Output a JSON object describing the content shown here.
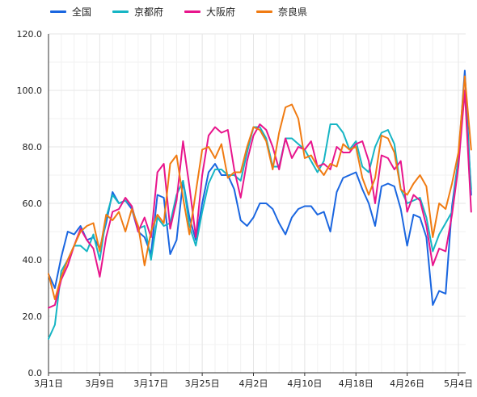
{
  "legend": [
    {
      "name": "全国",
      "color": "#1a66e0"
    },
    {
      "name": "京都府",
      "color": "#16b5c4"
    },
    {
      "name": "大阪府",
      "color": "#e8158c"
    },
    {
      "name": "奈良県",
      "color": "#f07b12"
    }
  ],
  "chart_data": {
    "type": "line",
    "title": "",
    "xlabel": "",
    "ylabel": "",
    "ylim": [
      0,
      120
    ],
    "yticks": [
      "0.0",
      "20.0",
      "40.0",
      "60.0",
      "80.0",
      "100.0",
      "120.0"
    ],
    "xticks": [
      {
        "index": 0,
        "label": "3月1日"
      },
      {
        "index": 8,
        "label": "3月9日"
      },
      {
        "index": 16,
        "label": "3月17日"
      },
      {
        "index": 24,
        "label": "3月25日"
      },
      {
        "index": 32,
        "label": "4月2日"
      },
      {
        "index": 40,
        "label": "4月10日"
      },
      {
        "index": 48,
        "label": "4月18日"
      },
      {
        "index": 56,
        "label": "4月26日"
      },
      {
        "index": 64,
        "label": "5月4日"
      }
    ],
    "grid": true,
    "legend_position": "top-left",
    "series": [
      {
        "name": "全国",
        "color": "#1a66e0",
        "values": [
          35,
          30,
          41,
          50,
          49,
          52,
          47,
          48,
          44,
          53,
          64,
          60,
          61,
          58,
          50,
          48,
          42,
          63,
          62,
          42,
          47,
          68,
          55,
          47,
          60,
          71,
          74,
          70,
          70,
          65,
          54,
          52,
          55,
          60,
          60,
          58,
          53,
          49,
          55,
          58,
          59,
          59,
          56,
          57,
          50,
          64,
          69,
          70,
          71,
          65,
          60,
          52,
          66,
          67,
          66,
          58,
          45,
          56,
          55,
          48,
          24,
          29,
          28,
          59,
          76,
          107,
          63
        ]
      },
      {
        "name": "京都府",
        "color": "#16b5c4",
        "values": [
          12,
          17,
          36,
          40,
          45,
          45,
          43,
          49,
          40,
          55,
          63,
          60,
          61,
          59,
          51,
          52,
          40,
          55,
          52,
          53,
          63,
          68,
          52,
          45,
          57,
          67,
          72,
          72,
          70,
          70,
          68,
          78,
          87,
          87,
          83,
          73,
          73,
          83,
          83,
          81,
          79,
          75,
          71,
          75,
          88,
          88,
          85,
          79,
          82,
          73,
          71,
          80,
          85,
          86,
          81,
          65,
          60,
          61,
          62,
          55,
          43,
          49,
          53,
          57,
          76,
          100,
          65
        ]
      },
      {
        "name": "大阪府",
        "color": "#e8158c",
        "values": [
          23,
          24,
          33,
          38,
          45,
          51,
          47,
          44,
          34,
          48,
          57,
          58,
          62,
          59,
          50,
          55,
          48,
          71,
          74,
          51,
          61,
          82,
          66,
          48,
          70,
          84,
          87,
          85,
          86,
          72,
          62,
          75,
          84,
          88,
          86,
          80,
          72,
          83,
          76,
          80,
          79,
          82,
          73,
          74,
          72,
          80,
          78,
          78,
          81,
          82,
          75,
          60,
          77,
          76,
          72,
          75,
          57,
          63,
          61,
          52,
          38,
          44,
          43,
          56,
          73,
          100,
          57
        ]
      },
      {
        "name": "奈良県",
        "color": "#f07b12",
        "values": [
          35,
          26,
          34,
          40,
          45,
          50,
          52,
          53,
          43,
          56,
          54,
          57,
          50,
          58,
          52,
          38,
          50,
          56,
          53,
          74,
          77,
          62,
          49,
          64,
          79,
          80,
          76,
          81,
          69,
          71,
          71,
          80,
          87,
          86,
          82,
          72,
          85,
          94,
          95,
          90,
          76,
          77,
          73,
          70,
          74,
          73,
          81,
          79,
          80,
          69,
          63,
          69,
          84,
          83,
          78,
          65,
          63,
          67,
          70,
          66,
          48,
          60,
          58,
          67,
          78,
          105,
          79
        ]
      }
    ]
  }
}
